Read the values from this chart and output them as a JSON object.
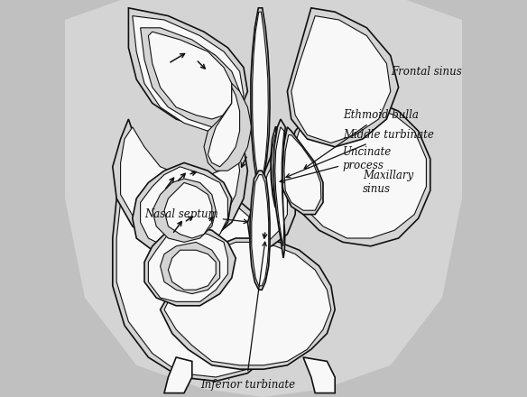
{
  "bg_color": "#c0c0c0",
  "line_color": "#111111",
  "fill_white": "#f8f8f8",
  "fill_gray": "#aaaaaa",
  "fill_lgray": "#d4d4d4",
  "labels": {
    "frontal_sinus": "Frontal sinus",
    "ethmoid_bulla": "Ethmoid bulla",
    "middle_turbinate": "Middle turbinate",
    "uncinate_process": "Uncinate\nprocess",
    "nasal_septum": "Nasal septum",
    "maxillary_sinus": "Maxillary\nsinus",
    "inferior_turbinate": "Inferior turbinate"
  },
  "figsize": [
    5.84,
    4.4
  ],
  "dpi": 100
}
